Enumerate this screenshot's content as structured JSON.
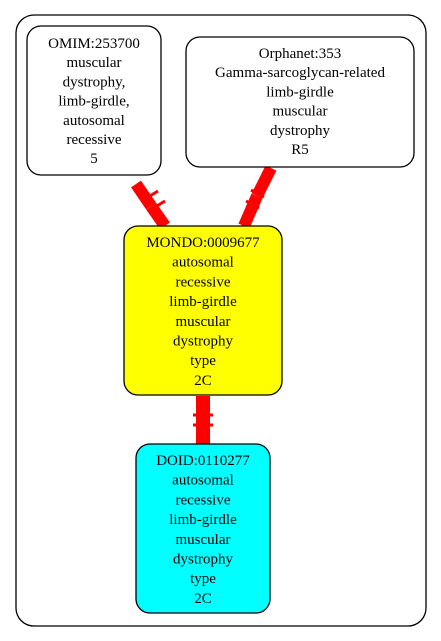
{
  "colors": {
    "frame_border": "#000000",
    "node_border": "#000000",
    "edge_color": "#ff0000",
    "source_fill": "#ffffff",
    "mondo_fill": "#ffff00",
    "doid_fill": "#00ffff"
  },
  "nodes": {
    "omim": {
      "lines": [
        "OMIM:253700",
        "muscular",
        "dystrophy,",
        "limb-girdle,",
        "autosomal",
        "recessive",
        "5"
      ]
    },
    "orphanet": {
      "lines": [
        "Orphanet:353",
        "Gamma-sarcoglycan-related",
        "limb-girdle",
        "muscular",
        "dystrophy",
        "R5"
      ]
    },
    "mondo": {
      "lines": [
        "MONDO:0009677",
        "autosomal",
        "recessive",
        "limb-girdle",
        "muscular",
        "dystrophy",
        "type",
        "2C"
      ]
    },
    "doid": {
      "lines": [
        "DOID:0110277",
        "autosomal",
        "recessive",
        "limb-girdle",
        "muscular",
        "dystrophy",
        "type",
        "2C"
      ]
    }
  },
  "edges": [
    {
      "from": "omim",
      "to": "mondo"
    },
    {
      "from": "orphanet",
      "to": "mondo"
    },
    {
      "from": "mondo",
      "to": "doid"
    }
  ]
}
